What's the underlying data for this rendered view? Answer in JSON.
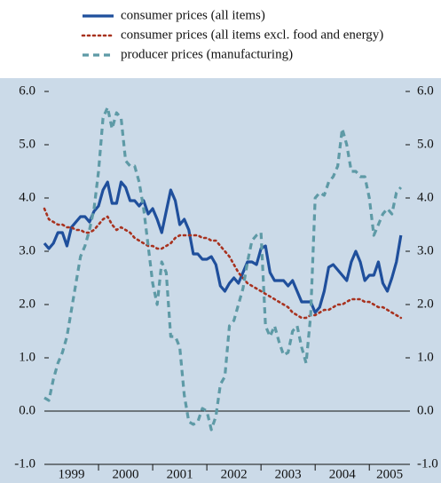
{
  "chart_data": {
    "type": "line",
    "x": [
      1999,
      1999.083,
      1999.167,
      1999.25,
      1999.333,
      1999.417,
      1999.5,
      1999.583,
      1999.667,
      1999.75,
      1999.833,
      1999.917,
      2000,
      2000.083,
      2000.167,
      2000.25,
      2000.333,
      2000.417,
      2000.5,
      2000.583,
      2000.667,
      2000.75,
      2000.833,
      2000.917,
      2001,
      2001.083,
      2001.167,
      2001.25,
      2001.333,
      2001.417,
      2001.5,
      2001.583,
      2001.667,
      2001.75,
      2001.833,
      2001.917,
      2002,
      2002.083,
      2002.167,
      2002.25,
      2002.333,
      2002.417,
      2002.5,
      2002.583,
      2002.667,
      2002.75,
      2002.833,
      2002.917,
      2003,
      2003.083,
      2003.167,
      2003.25,
      2003.333,
      2003.417,
      2003.5,
      2003.583,
      2003.667,
      2003.75,
      2003.833,
      2003.917,
      2004,
      2004.083,
      2004.167,
      2004.25,
      2004.333,
      2004.417,
      2004.5,
      2004.583,
      2004.667,
      2004.75,
      2004.833,
      2004.917,
      2005,
      2005.083,
      2005.167,
      2005.25,
      2005.333,
      2005.417,
      2005.5,
      2005.583
    ],
    "series": [
      {
        "name": "consumer prices (all items)",
        "color": "#1f4f9c",
        "dash": "solid",
        "values": [
          3.15,
          3.05,
          3.15,
          3.35,
          3.35,
          3.1,
          3.45,
          3.55,
          3.65,
          3.65,
          3.55,
          3.75,
          3.85,
          4.15,
          4.3,
          3.9,
          3.9,
          4.3,
          4.2,
          3.95,
          3.95,
          3.85,
          3.95,
          3.7,
          3.8,
          3.6,
          3.35,
          3.75,
          4.15,
          3.95,
          3.5,
          3.6,
          3.4,
          2.95,
          2.95,
          2.85,
          2.85,
          2.9,
          2.75,
          2.35,
          2.25,
          2.4,
          2.5,
          2.4,
          2.6,
          2.8,
          2.8,
          2.75,
          3.05,
          3.1,
          2.6,
          2.45,
          2.45,
          2.45,
          2.35,
          2.45,
          2.25,
          2.05,
          2.05,
          2.05,
          1.85,
          1.95,
          2.25,
          2.7,
          2.75,
          2.65,
          2.55,
          2.45,
          2.8,
          3.0,
          2.8,
          2.45,
          2.55,
          2.55,
          2.8,
          2.4,
          2.25,
          2.5,
          2.8,
          3.3
        ]
      },
      {
        "name": "consumer prices (all items excl. food and energy)",
        "color": "#a8321f",
        "dash": "dotted",
        "values": [
          3.8,
          3.6,
          3.55,
          3.5,
          3.5,
          3.45,
          3.45,
          3.4,
          3.4,
          3.35,
          3.35,
          3.4,
          3.5,
          3.6,
          3.65,
          3.5,
          3.4,
          3.45,
          3.4,
          3.35,
          3.25,
          3.2,
          3.15,
          3.1,
          3.1,
          3.05,
          3.05,
          3.1,
          3.15,
          3.25,
          3.3,
          3.3,
          3.3,
          3.3,
          3.3,
          3.25,
          3.25,
          3.2,
          3.2,
          3.1,
          3.0,
          2.9,
          2.75,
          2.6,
          2.5,
          2.4,
          2.35,
          2.3,
          2.25,
          2.2,
          2.15,
          2.1,
          2.05,
          2.0,
          1.95,
          1.85,
          1.8,
          1.75,
          1.75,
          1.8,
          1.8,
          1.85,
          1.9,
          1.9,
          1.95,
          2.0,
          2.0,
          2.05,
          2.1,
          2.1,
          2.1,
          2.05,
          2.05,
          2.0,
          1.95,
          1.95,
          1.9,
          1.85,
          1.8,
          1.75
        ]
      },
      {
        "name": "producer prices (manufacturing)",
        "color": "#5e9aa6",
        "dash": "dashed",
        "values": [
          0.25,
          0.2,
          0.6,
          0.9,
          1.1,
          1.4,
          1.9,
          2.4,
          2.9,
          3.1,
          3.4,
          3.8,
          4.5,
          5.5,
          5.7,
          5.3,
          5.6,
          5.5,
          4.7,
          4.6,
          4.6,
          4.3,
          3.8,
          3.1,
          2.4,
          2.0,
          2.8,
          2.6,
          1.4,
          1.4,
          1.2,
          0.3,
          -0.2,
          -0.25,
          -0.2,
          0.05,
          0.0,
          -0.35,
          -0.1,
          0.5,
          0.65,
          1.6,
          1.7,
          2.0,
          2.3,
          2.8,
          3.2,
          3.3,
          3.35,
          1.6,
          1.4,
          1.6,
          1.3,
          1.05,
          1.1,
          1.5,
          1.6,
          1.2,
          0.9,
          1.8,
          4.0,
          4.1,
          4.05,
          4.3,
          4.4,
          4.6,
          5.3,
          5.0,
          4.5,
          4.5,
          4.4,
          4.4,
          4.0,
          3.3,
          3.5,
          3.7,
          3.8,
          3.7,
          4.1,
          4.2
        ]
      }
    ],
    "xlim": [
      1999,
      2005.75
    ],
    "xticks": [
      {
        "value": 1999.5,
        "label": "1999"
      },
      {
        "value": 2000.5,
        "label": "2000"
      },
      {
        "value": 2001.5,
        "label": "2001"
      },
      {
        "value": 2002.5,
        "label": "2002"
      },
      {
        "value": 2003.5,
        "label": "2003"
      },
      {
        "value": 2004.5,
        "label": "2004"
      },
      {
        "value": 2005.375,
        "label": "2005"
      }
    ],
    "ylim": [
      -1,
      6
    ],
    "yticks": [
      {
        "value": -1,
        "label": "-1.0"
      },
      {
        "value": 0,
        "label": "0.0"
      },
      {
        "value": 1,
        "label": "1.0"
      },
      {
        "value": 2,
        "label": "2.0"
      },
      {
        "value": 3,
        "label": "3.0"
      },
      {
        "value": 4,
        "label": "4.0"
      },
      {
        "value": 5,
        "label": "5.0"
      },
      {
        "value": 6,
        "label": "6.0"
      }
    ],
    "y2lim": [
      -1,
      6
    ],
    "y2ticks": [
      {
        "value": -1,
        "label": "-1.0"
      },
      {
        "value": 0,
        "label": "0.0"
      },
      {
        "value": 1,
        "label": "1.0"
      },
      {
        "value": 2,
        "label": "2.0"
      },
      {
        "value": 3,
        "label": "3.0"
      },
      {
        "value": 4,
        "label": "4.0"
      },
      {
        "value": 5,
        "label": "5.0"
      },
      {
        "value": 6,
        "label": "6.0"
      }
    ],
    "grid": false,
    "legend": "top"
  }
}
